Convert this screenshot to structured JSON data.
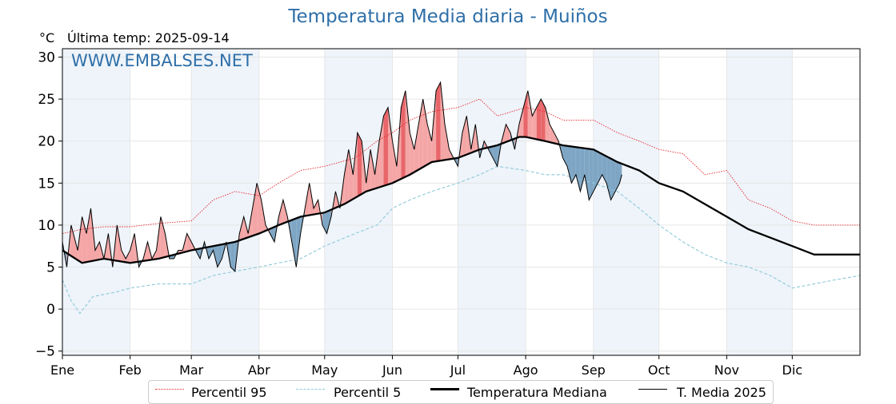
{
  "title": "Temperatura Media diaria - Muiños",
  "unit_label": "°C",
  "last_temp": "Última temp: 2025-09-14",
  "watermark": "WWW.EMBALSES.NET",
  "colors": {
    "title": "#2e6fa8",
    "p95": "#e8262c",
    "p5": "#8ec8d8",
    "median": "#000000",
    "mean2025": "#000000",
    "above_fill": "#f4a6a6",
    "above_fill_strong": "#e8666a",
    "below_fill": "#7ea6c4",
    "band": "#eef4fa"
  },
  "legend": [
    {
      "label": "Percentil 95",
      "style": "dotted-red"
    },
    {
      "label": "Percentil 5",
      "style": "dashed-lightblue"
    },
    {
      "label": "Temperatura Mediana",
      "style": "thick-black"
    },
    {
      "label": "T. Media 2025",
      "style": "thin-black"
    }
  ],
  "chart_data": {
    "type": "line",
    "title": "Temperatura Media diaria - Muiños",
    "ylabel": "°C",
    "ylim": [
      -5.5,
      31
    ],
    "yticks": [
      -5,
      0,
      5,
      10,
      15,
      20,
      25,
      30
    ],
    "yticklabels": [
      "−5",
      "0",
      "5",
      "10",
      "15",
      "20",
      "25",
      "30"
    ],
    "xlim_day": [
      1,
      366
    ],
    "month_labels": [
      "Ene",
      "Feb",
      "Mar",
      "Abr",
      "May",
      "Jun",
      "Jul",
      "Ago",
      "Sep",
      "Oct",
      "Nov",
      "Dic"
    ],
    "month_start_day": [
      1,
      32,
      60,
      91,
      121,
      152,
      182,
      213,
      244,
      274,
      305,
      335
    ],
    "grid": true,
    "legend_position": "bottom",
    "series": [
      {
        "name": "Percentil 95",
        "day": [
          1,
          10,
          20,
          32,
          45,
          60,
          70,
          80,
          91,
          100,
          110,
          121,
          135,
          145,
          152,
          160,
          170,
          182,
          192,
          200,
          213,
          222,
          230,
          244,
          255,
          265,
          274,
          285,
          295,
          305,
          315,
          325,
          335,
          345,
          355,
          366
        ],
        "values": [
          9,
          9.5,
          9.8,
          9.8,
          10.2,
          10.5,
          13,
          14,
          13.5,
          15,
          16.5,
          17,
          18,
          20,
          21,
          22.5,
          23.5,
          24,
          25,
          23,
          24,
          23.5,
          22.5,
          22.5,
          21,
          20,
          19,
          18.5,
          16,
          16.5,
          13,
          12,
          10.5,
          10,
          10,
          10
        ]
      },
      {
        "name": "Percentil 5",
        "day": [
          1,
          5,
          9,
          15,
          25,
          32,
          45,
          60,
          70,
          80,
          91,
          100,
          110,
          121,
          135,
          145,
          152,
          160,
          170,
          182,
          192,
          200,
          213,
          222,
          230,
          244,
          255,
          265,
          274,
          285,
          295,
          305,
          315,
          325,
          335,
          345,
          355,
          366
        ],
        "values": [
          3.5,
          1,
          -0.5,
          1.5,
          2,
          2.5,
          3,
          3,
          4,
          4.5,
          5,
          5.5,
          6,
          7.5,
          9,
          10,
          12,
          13,
          14,
          15,
          16,
          17,
          16.5,
          16,
          16,
          15,
          14,
          12,
          10,
          8,
          6.5,
          5.5,
          5,
          4,
          2.5,
          3,
          3.5,
          4
        ]
      },
      {
        "name": "Temperatura Mediana",
        "day": [
          1,
          10,
          20,
          32,
          45,
          60,
          70,
          80,
          91,
          100,
          110,
          121,
          130,
          140,
          152,
          160,
          170,
          182,
          192,
          200,
          210,
          213,
          222,
          230,
          244,
          255,
          265,
          274,
          285,
          295,
          305,
          315,
          325,
          335,
          345,
          355,
          366
        ],
        "values": [
          7,
          5.5,
          6,
          5.5,
          6,
          7,
          7.5,
          8,
          9,
          10,
          11,
          11.5,
          12.5,
          14,
          15,
          16,
          17.5,
          18,
          19,
          19.5,
          20.5,
          20.5,
          20,
          19.5,
          19,
          17.5,
          16.5,
          15,
          14,
          12.5,
          11,
          9.5,
          8.5,
          7.5,
          6.5,
          6.5,
          6.5
        ]
      },
      {
        "name": "T. Media 2025",
        "day": [
          1,
          3,
          5,
          8,
          10,
          12,
          14,
          16,
          18,
          20,
          22,
          24,
          26,
          28,
          30,
          32,
          34,
          36,
          38,
          40,
          42,
          44,
          46,
          48,
          50,
          52,
          54,
          56,
          58,
          60,
          62,
          64,
          66,
          68,
          70,
          72,
          74,
          76,
          78,
          80,
          82,
          84,
          86,
          88,
          90,
          92,
          94,
          96,
          98,
          100,
          102,
          104,
          106,
          108,
          110,
          112,
          114,
          116,
          118,
          120,
          122,
          124,
          126,
          128,
          130,
          132,
          134,
          136,
          138,
          140,
          142,
          144,
          146,
          148,
          150,
          152,
          154,
          156,
          158,
          160,
          162,
          164,
          166,
          168,
          170,
          172,
          174,
          176,
          178,
          180,
          182,
          184,
          186,
          188,
          190,
          192,
          194,
          196,
          198,
          200,
          202,
          204,
          206,
          208,
          210,
          212,
          214,
          216,
          218,
          220,
          222,
          224,
          226,
          228,
          230,
          232,
          234,
          236,
          238,
          240,
          242,
          244,
          246,
          248,
          250,
          252,
          254,
          256,
          257
        ],
        "values": [
          8,
          5,
          10,
          7,
          11,
          9,
          12,
          7,
          8,
          6,
          9,
          5,
          10,
          7,
          6,
          7,
          9,
          5,
          6,
          8,
          6,
          7,
          11,
          9,
          6,
          6,
          7,
          7,
          9,
          8,
          7,
          6,
          8,
          6,
          7,
          5,
          6,
          8,
          5,
          4.5,
          9,
          11,
          9,
          12,
          15,
          13,
          10,
          9,
          8,
          11,
          13,
          11,
          8,
          5,
          9,
          12,
          15,
          12,
          13,
          10,
          9,
          11,
          14,
          12,
          16,
          19,
          16,
          21,
          20,
          15,
          19,
          16,
          20,
          23,
          24,
          20,
          17,
          24,
          26,
          21,
          19,
          22,
          25,
          22,
          20,
          26,
          27,
          22,
          19,
          18,
          17,
          21,
          23,
          19,
          22,
          18,
          20,
          19,
          18,
          17,
          20,
          22,
          21,
          19,
          22,
          24,
          26,
          23,
          24,
          25,
          24,
          22,
          21,
          20,
          18,
          17,
          15,
          16,
          14,
          16,
          13,
          14,
          15,
          16,
          15,
          13,
          14,
          15,
          16
        ]
      }
    ]
  }
}
